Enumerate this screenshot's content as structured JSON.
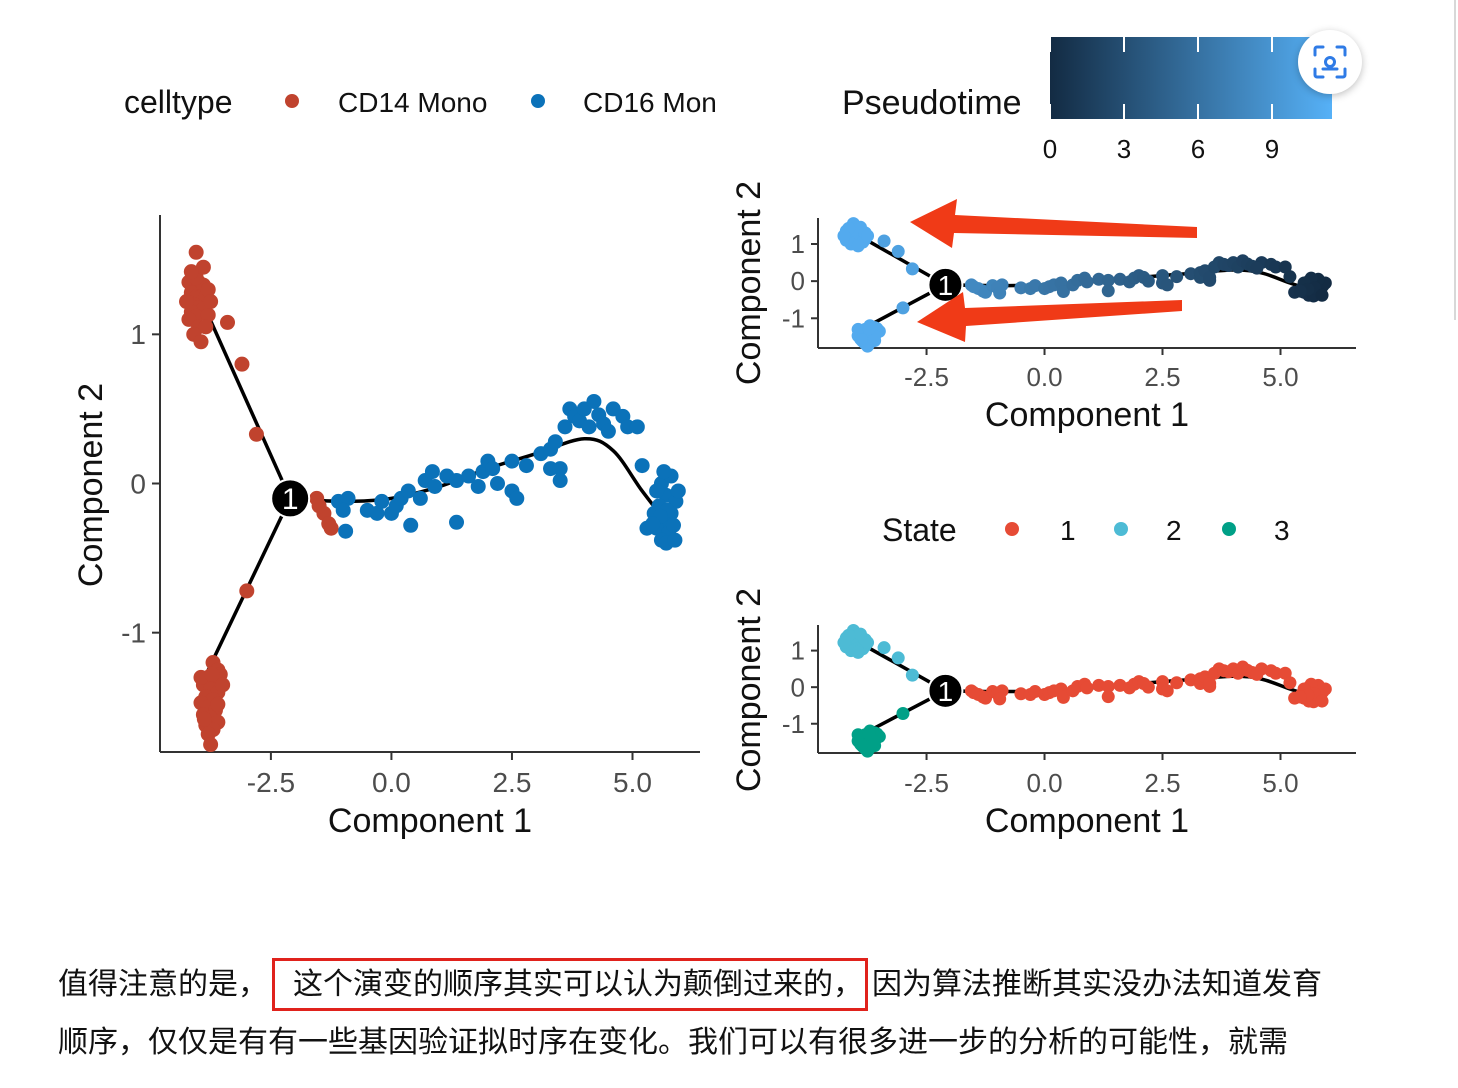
{
  "celltype_legend": {
    "title": "celltype",
    "items": [
      {
        "label": "CD14 Mono",
        "color": "#c0432e"
      },
      {
        "label": "CD16 Mon",
        "color": "#0b72b9"
      }
    ]
  },
  "pseudotime_legend": {
    "title": "Pseudotime",
    "ticks": [
      "0",
      "3",
      "6",
      "9"
    ],
    "gradient": [
      "#132b43",
      "#56b1f7"
    ]
  },
  "state_legend": {
    "title": "State",
    "items": [
      {
        "label": "1",
        "color": "#e64b35"
      },
      {
        "label": "2",
        "color": "#4dbbd5"
      },
      {
        "label": "3",
        "color": "#00a087"
      }
    ]
  },
  "branch_point_label": "1",
  "axis_labels": {
    "x": "Component 1",
    "y": "Component 2"
  },
  "annotation_arrow_color": "#f03a17",
  "chart_data": [
    {
      "id": "celltype",
      "type": "scatter",
      "xlabel": "Component 1",
      "ylabel": "Component 2",
      "xlim": [
        -4.8,
        6.4
      ],
      "ylim": [
        -1.8,
        1.8
      ],
      "xticks": [
        "-2.5",
        "0.0",
        "2.5",
        "5.0"
      ],
      "yticks": [
        "1",
        "0",
        "-1"
      ],
      "color_by": "celltype",
      "branch_point": {
        "label": "1",
        "x": -2.1,
        "y": -0.1
      }
    },
    {
      "id": "pseudotime",
      "type": "scatter",
      "xlabel": "Component 1",
      "ylabel": "Component 2",
      "xlim": [
        -4.8,
        6.6
      ],
      "ylim": [
        -1.8,
        1.7
      ],
      "xticks": [
        "-2.5",
        "0.0",
        "2.5",
        "5.0"
      ],
      "yticks": [
        "1",
        "0",
        "-1"
      ],
      "color_by": "Pseudotime",
      "color_range": [
        0,
        11
      ],
      "branch_point": {
        "label": "1",
        "x": -2.1,
        "y": -0.1
      }
    },
    {
      "id": "state",
      "type": "scatter",
      "xlabel": "Component 1",
      "ylabel": "Component 2",
      "xlim": [
        -4.8,
        6.6
      ],
      "ylim": [
        -1.8,
        1.7
      ],
      "xticks": [
        "-2.5",
        "0.0",
        "2.5",
        "5.0"
      ],
      "yticks": [
        "1",
        "0",
        "-1"
      ],
      "color_by": "State",
      "branch_point": {
        "label": "1",
        "x": -2.1,
        "y": -0.1
      }
    }
  ],
  "trajectory": {
    "upper_branch": [
      [
        -3.9,
        1.2
      ],
      [
        -2.1,
        -0.1
      ]
    ],
    "lower_branch": [
      [
        -3.8,
        -1.25
      ],
      [
        -2.1,
        -0.1
      ]
    ],
    "main_curve": [
      [
        -2.1,
        -0.1
      ],
      [
        -1.0,
        -0.12
      ],
      [
        0.0,
        -0.1
      ],
      [
        1.0,
        -0.02
      ],
      [
        2.0,
        0.1
      ],
      [
        3.0,
        0.2
      ],
      [
        4.0,
        0.3
      ],
      [
        4.6,
        0.22
      ],
      [
        5.2,
        -0.05
      ],
      [
        5.8,
        -0.3
      ]
    ]
  },
  "cells": {
    "upper": [
      [
        -4.05,
        1.55
      ],
      [
        -4.1,
        1.4
      ],
      [
        -4.2,
        1.35
      ],
      [
        -4.0,
        1.35
      ],
      [
        -3.9,
        1.33
      ],
      [
        -4.15,
        1.28
      ],
      [
        -4.05,
        1.25
      ],
      [
        -3.95,
        1.25
      ],
      [
        -3.85,
        1.25
      ],
      [
        -4.1,
        1.2
      ],
      [
        -4.0,
        1.18
      ],
      [
        -3.9,
        1.17
      ],
      [
        -4.15,
        1.15
      ],
      [
        -4.05,
        1.12
      ],
      [
        -3.8,
        1.13
      ],
      [
        -4.2,
        1.1
      ],
      [
        -4.0,
        1.05
      ],
      [
        -3.85,
        1.05
      ],
      [
        -4.1,
        1.0
      ],
      [
        -3.95,
        0.95
      ],
      [
        -4.05,
        1.38
      ],
      [
        -3.9,
        1.45
      ],
      [
        -4.15,
        1.42
      ],
      [
        -3.8,
        1.3
      ],
      [
        -4.25,
        1.22
      ],
      [
        -3.75,
        1.22
      ]
    ],
    "upper_tail": [
      [
        -3.4,
        1.08
      ],
      [
        -3.1,
        0.8
      ],
      [
        -2.8,
        0.33
      ]
    ],
    "lower": [
      [
        -3.7,
        -1.2
      ],
      [
        -3.6,
        -1.25
      ],
      [
        -3.8,
        -1.3
      ],
      [
        -3.65,
        -1.33
      ],
      [
        -3.9,
        -1.35
      ],
      [
        -3.75,
        -1.38
      ],
      [
        -3.6,
        -1.4
      ],
      [
        -3.85,
        -1.43
      ],
      [
        -3.7,
        -1.45
      ],
      [
        -3.95,
        -1.47
      ],
      [
        -3.8,
        -1.5
      ],
      [
        -3.65,
        -1.52
      ],
      [
        -3.9,
        -1.55
      ],
      [
        -3.75,
        -1.57
      ],
      [
        -3.6,
        -1.6
      ],
      [
        -3.85,
        -1.62
      ],
      [
        -3.7,
        -1.65
      ],
      [
        -3.8,
        -1.68
      ],
      [
        -3.75,
        -1.75
      ],
      [
        -3.55,
        -1.28
      ],
      [
        -3.5,
        -1.35
      ],
      [
        -3.95,
        -1.3
      ],
      [
        -3.6,
        -1.48
      ],
      [
        -3.88,
        -1.58
      ],
      [
        -3.72,
        -1.28
      ]
    ],
    "lower_tail": [
      [
        -3.0,
        -0.72
      ]
    ],
    "near_branch": [
      [
        -1.55,
        -0.1
      ],
      [
        -1.4,
        -0.2
      ],
      [
        -1.3,
        -0.27
      ],
      [
        -1.25,
        -0.3
      ],
      [
        -1.5,
        -0.15
      ]
    ],
    "main": [
      [
        -1.1,
        -0.12
      ],
      [
        -0.9,
        -0.1
      ],
      [
        -1.0,
        -0.18
      ],
      [
        -0.95,
        -0.32
      ],
      [
        -0.5,
        -0.18
      ],
      [
        -0.3,
        -0.2
      ],
      [
        -0.2,
        -0.12
      ],
      [
        0.0,
        -0.2
      ],
      [
        0.1,
        -0.15
      ],
      [
        0.2,
        -0.1
      ],
      [
        0.35,
        -0.05
      ],
      [
        0.4,
        -0.28
      ],
      [
        0.6,
        -0.1
      ],
      [
        0.7,
        0.02
      ],
      [
        0.85,
        0.08
      ],
      [
        0.9,
        -0.02
      ],
      [
        1.15,
        0.05
      ],
      [
        1.35,
        0.02
      ],
      [
        1.35,
        -0.26
      ],
      [
        1.6,
        0.05
      ],
      [
        1.8,
        -0.02
      ],
      [
        1.9,
        0.08
      ],
      [
        2.0,
        0.15
      ],
      [
        2.1,
        0.1
      ],
      [
        2.2,
        0.0
      ],
      [
        2.5,
        0.15
      ],
      [
        2.5,
        -0.05
      ],
      [
        2.6,
        -0.1
      ],
      [
        2.8,
        0.12
      ],
      [
        3.1,
        0.2
      ],
      [
        3.3,
        0.1
      ],
      [
        3.3,
        0.23
      ],
      [
        3.5,
        0.02
      ],
      [
        3.4,
        0.28
      ],
      [
        3.5,
        0.1
      ],
      [
        3.7,
        0.5
      ],
      [
        3.6,
        0.38
      ],
      [
        3.8,
        0.45
      ],
      [
        3.9,
        0.42
      ],
      [
        4.0,
        0.5
      ],
      [
        4.1,
        0.38
      ],
      [
        4.2,
        0.55
      ],
      [
        4.3,
        0.46
      ],
      [
        4.4,
        0.4
      ],
      [
        4.6,
        0.5
      ],
      [
        4.5,
        0.35
      ],
      [
        4.8,
        0.45
      ],
      [
        4.9,
        0.38
      ],
      [
        5.1,
        0.38
      ],
      [
        5.2,
        0.12
      ],
      [
        5.3,
        -0.3
      ]
    ],
    "end_cluster": [
      [
        5.6,
        0.0
      ],
      [
        5.7,
        -0.08
      ],
      [
        5.55,
        -0.15
      ],
      [
        5.8,
        -0.2
      ],
      [
        5.65,
        -0.25
      ],
      [
        5.5,
        -0.3
      ],
      [
        5.75,
        -0.33
      ],
      [
        5.9,
        -0.12
      ],
      [
        5.6,
        -0.38
      ],
      [
        5.85,
        -0.28
      ],
      [
        5.7,
        -0.4
      ],
      [
        5.45,
        -0.2
      ],
      [
        5.95,
        -0.05
      ],
      [
        5.8,
        0.05
      ],
      [
        5.65,
        0.08
      ],
      [
        5.5,
        -0.05
      ],
      [
        5.72,
        -0.18
      ],
      [
        5.58,
        -0.22
      ],
      [
        5.88,
        -0.38
      ],
      [
        5.42,
        -0.27
      ]
    ]
  },
  "article": {
    "line1_before": "值得注意的是，",
    "line1_highlight": "这个演变的顺序其实可以认为颠倒过来的，",
    "line1_after": "因为算法推断其实没办法知道发育",
    "line2": "顺序，仅仅是有有一些基因验证拟时序在变化。我们可以有很多进一步的分析的可能性，就需"
  },
  "scan_button": {
    "icon": "scan-text-icon",
    "color": "#2f7be6"
  }
}
